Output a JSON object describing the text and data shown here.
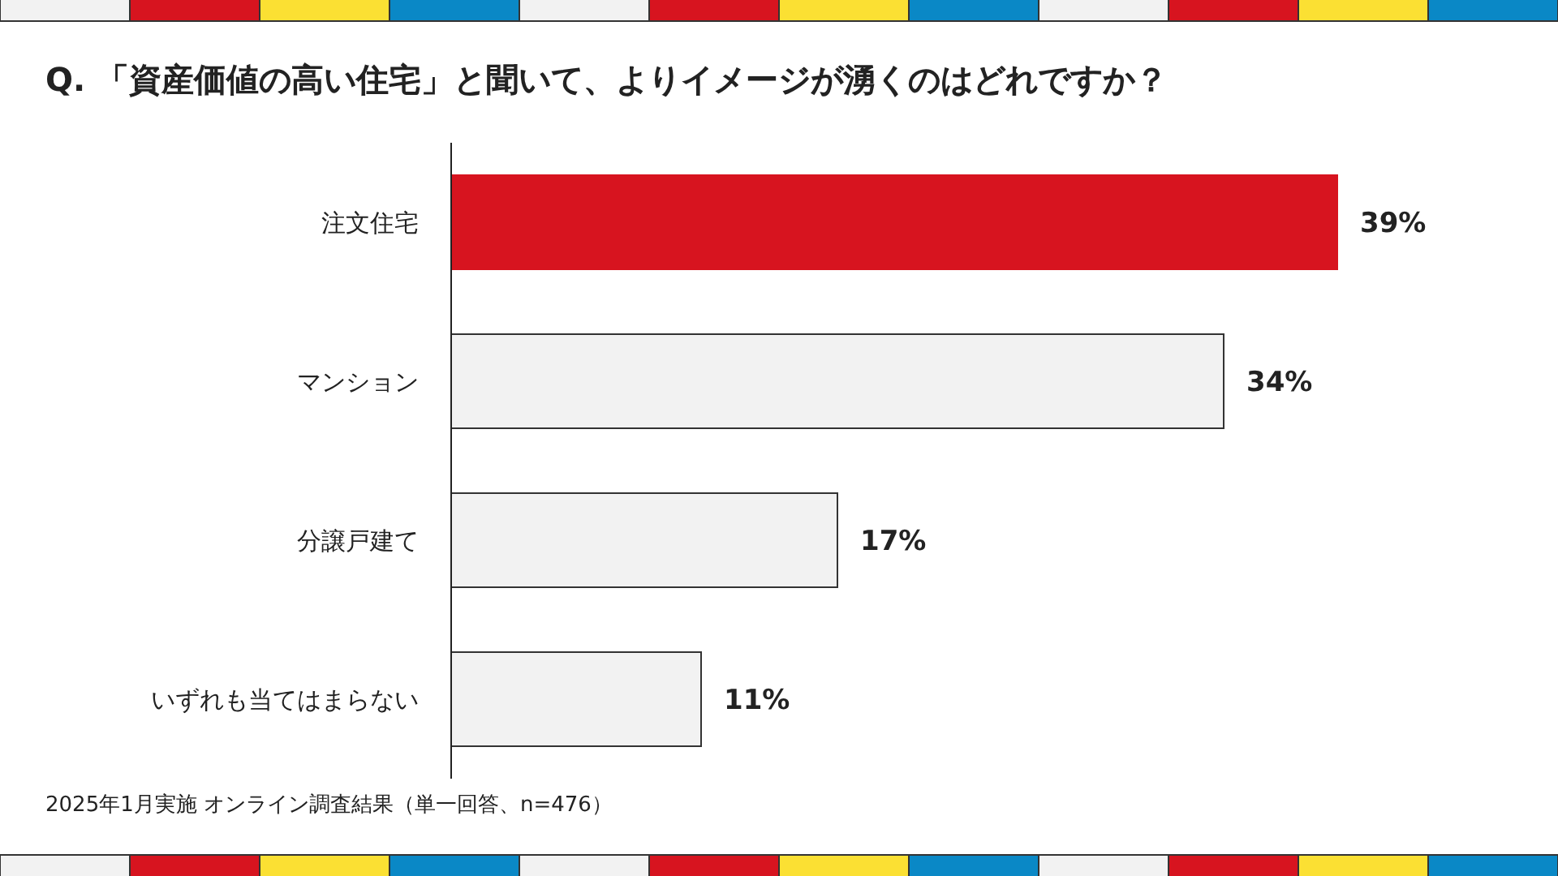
{
  "chart_data": {
    "type": "bar",
    "orientation": "horizontal",
    "title": "Q. 「資産価値の高い住宅」と聞いて、よりイメージが湧くのはどれですか？",
    "categories": [
      "注文住宅",
      "マンション",
      "分譲戸建て",
      "いずれも当てはまらない"
    ],
    "values": [
      39,
      34,
      17,
      11
    ],
    "colors": [
      "#d7141f",
      "#f2f2f2",
      "#f2f2f2",
      "#f2f2f2"
    ],
    "value_labels": [
      "39%",
      "34%",
      "17%",
      "11%"
    ],
    "annotations": [
      "2025年1月実施 オンライン調査結果（単一回答、n=476）"
    ]
  }
}
